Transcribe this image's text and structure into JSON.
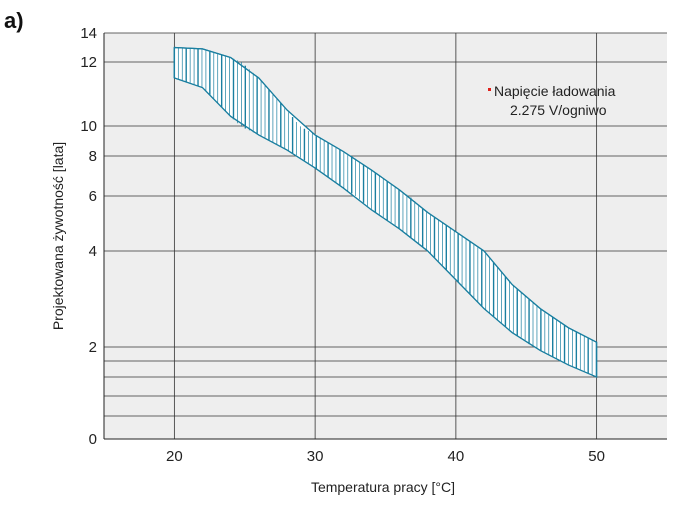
{
  "panel_label": "a)",
  "chart_data": {
    "type": "area",
    "title": "",
    "xlabel": "Temperatura pracy [°C]",
    "ylabel": "Projektowana żywotność [lata]",
    "xlim": [
      15,
      55
    ],
    "x_ticks": [
      20,
      30,
      40,
      50
    ],
    "y_ticks": [
      {
        "label": "0"
      },
      {
        "label": ""
      },
      {
        "label": ""
      },
      {
        "label": ""
      },
      {
        "label": ""
      },
      {
        "label": "2"
      },
      {
        "label": "4"
      },
      {
        "label": "6"
      },
      {
        "label": "8"
      },
      {
        "label": "10"
      },
      {
        "label": "12"
      },
      {
        "label": "14"
      }
    ],
    "grid": true,
    "background_color": "#eeeeee",
    "band_color": "#1a7fa0",
    "series": [
      {
        "name": "Napięcie ładowania 2.275 V/ogniwo",
        "x": [
          20,
          22,
          24,
          26,
          28,
          30,
          32,
          34,
          36,
          38,
          40,
          42,
          44,
          46,
          48,
          50
        ],
        "upper": [
          13.0,
          12.9,
          12.3,
          11.5,
          10.5,
          9.4,
          8.3,
          7.3,
          6.3,
          5.4,
          4.7,
          4.0,
          3.3,
          2.8,
          2.4,
          2.1
        ],
        "lower": [
          11.5,
          11.2,
          10.3,
          9.4,
          8.4,
          7.4,
          6.4,
          5.5,
          4.8,
          4.0,
          3.4,
          2.8,
          2.3,
          1.9,
          1.5,
          1.2
        ]
      }
    ],
    "legend": {
      "line1": "Napięcie ładowania",
      "line2": "2.275 V/ogniwo",
      "position": "top-right",
      "marker_color": "#e0201a"
    }
  }
}
